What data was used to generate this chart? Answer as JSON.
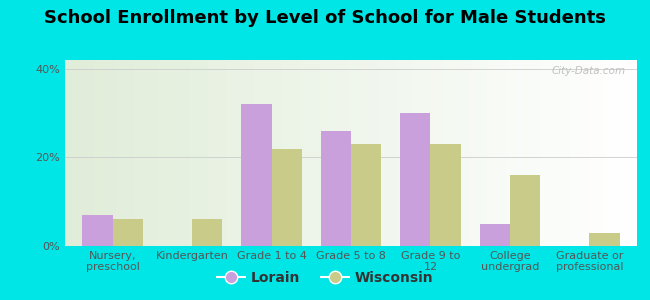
{
  "title": "School Enrollment by Level of School for Male Students",
  "categories": [
    "Nursery,\npreschool",
    "Kindergarten",
    "Grade 1 to 4",
    "Grade 5 to 8",
    "Grade 9 to\n12",
    "College\nundergrad",
    "Graduate or\nprofessional"
  ],
  "lorain": [
    7,
    0,
    32,
    26,
    30,
    5,
    0
  ],
  "wisconsin": [
    6,
    6,
    22,
    23,
    23,
    16,
    3
  ],
  "lorain_color": "#c9a0dc",
  "wisconsin_color": "#c8cc88",
  "background_color": "#00e5e5",
  "plot_bg": "#e8f0e0",
  "yticks": [
    0,
    20,
    40
  ],
  "ylim": [
    0,
    42
  ],
  "bar_width": 0.38,
  "title_fontsize": 13,
  "tick_fontsize": 8,
  "legend_fontsize": 10,
  "watermark": "City-Data.com"
}
